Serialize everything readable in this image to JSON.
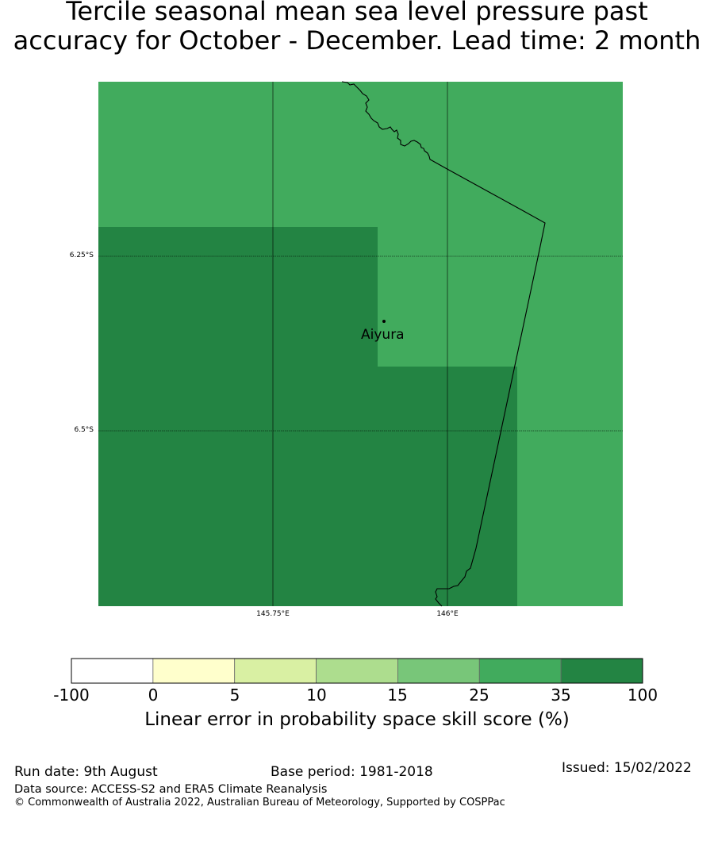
{
  "title": {
    "line1": "Tercile seasonal mean sea level pressure past",
    "line2": "accuracy for October - December. Lead time: 2 month"
  },
  "map": {
    "latitude_labels": [
      "6.25°S",
      "6.5°S"
    ],
    "longitude_labels": [
      "145.75°E",
      "146°E"
    ],
    "city": "Aiyura",
    "colors": {
      "light_green": "#41ab5d",
      "dark_green": "#238443"
    }
  },
  "colorbar": {
    "ticks": [
      "-100",
      "0",
      "5",
      "10",
      "15",
      "25",
      "35",
      "100"
    ],
    "colors": [
      "#ffffff",
      "#ffffcc",
      "#d9f0a3",
      "#addd8e",
      "#78c679",
      "#41ab5d",
      "#238443"
    ],
    "label": "Linear error in probability space skill score (%)"
  },
  "footer": {
    "run_date": "Run date: 9th August",
    "base_period": "Base period: 1981-2018",
    "issued": "Issued: 15/02/2022",
    "data_source": "Data source: ACCESS-S2 and ERA5 Climate Reanalysis",
    "copyright": "© Commonwealth of Australia 2022, Australian Bureau of Meteorology, Supported by COSPPac"
  }
}
